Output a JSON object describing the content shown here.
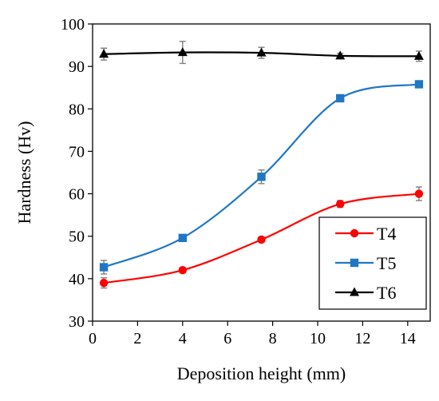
{
  "chart_data": {
    "type": "line",
    "xlabel": "Deposition height (mm)",
    "ylabel": "Hardness (Hv)",
    "xlim": [
      0,
      15
    ],
    "ylim": [
      30,
      100
    ],
    "xticks": [
      0,
      2,
      4,
      6,
      8,
      10,
      12,
      14
    ],
    "yticks": [
      30,
      40,
      50,
      60,
      70,
      80,
      90,
      100
    ],
    "grid": false,
    "legend_position": "bottom-right",
    "series": [
      {
        "name": "T4",
        "color": "#ff0000",
        "marker": "circle",
        "x": [
          0.5,
          4,
          7.5,
          11,
          14.5
        ],
        "y": [
          39,
          42,
          49.2,
          57.6,
          60
        ],
        "err": [
          1.2,
          0.6,
          0.6,
          0.8,
          1.6
        ]
      },
      {
        "name": "T5",
        "color": "#1f77c4",
        "marker": "square",
        "x": [
          0.5,
          4,
          7.5,
          11,
          14.5
        ],
        "y": [
          42.7,
          49.6,
          64,
          82.5,
          85.8
        ],
        "err": [
          1.6,
          0.6,
          1.6,
          0.6,
          0.6
        ]
      },
      {
        "name": "T6",
        "color": "#000000",
        "marker": "triangle",
        "x": [
          0.5,
          4,
          7.5,
          11,
          14.5
        ],
        "y": [
          92.9,
          93.3,
          93.2,
          92.5,
          92.4
        ],
        "err": [
          1.4,
          2.6,
          1.3,
          0.6,
          1.2
        ]
      }
    ]
  }
}
